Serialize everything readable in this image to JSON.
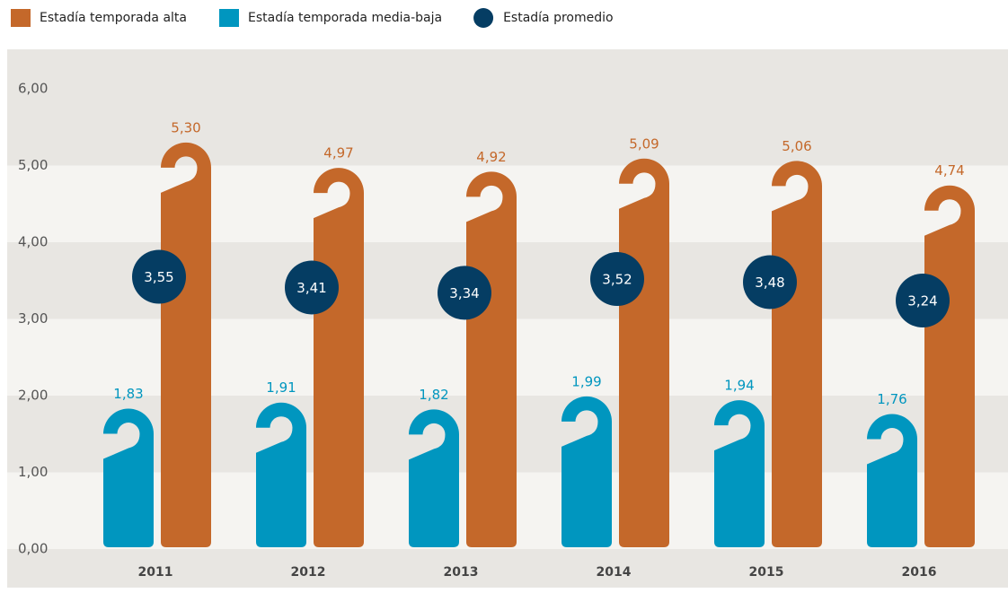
{
  "chart_data": {
    "type": "bar",
    "categories": [
      "2011",
      "2012",
      "2013",
      "2014",
      "2015",
      "2016"
    ],
    "series": [
      {
        "name": "Estadía temporada alta",
        "color": "#c4682a",
        "type": "bar",
        "values": [
          5.3,
          4.97,
          4.92,
          5.09,
          5.06,
          4.74
        ],
        "value_labels": [
          "5,30",
          "4,97",
          "4,92",
          "5,09",
          "5,06",
          "4,74"
        ]
      },
      {
        "name": "Estadía temporada media-baja",
        "color": "#0096bf",
        "type": "bar",
        "values": [
          1.83,
          1.91,
          1.82,
          1.99,
          1.94,
          1.76
        ],
        "value_labels": [
          "1,83",
          "1,91",
          "1,82",
          "1,99",
          "1,94",
          "1,76"
        ]
      },
      {
        "name": "Estadía promedio",
        "color": "#053d63",
        "type": "scatter",
        "values": [
          3.55,
          3.41,
          3.34,
          3.52,
          3.48,
          3.24
        ],
        "value_labels": [
          "3,55",
          "3,41",
          "3,34",
          "3,52",
          "3,48",
          "3,24"
        ]
      }
    ],
    "ylim": [
      0,
      6
    ],
    "yticks": [
      {
        "value": 0,
        "label": "0,00"
      },
      {
        "value": 1,
        "label": "1,00"
      },
      {
        "value": 2,
        "label": "2,00"
      },
      {
        "value": 3,
        "label": "3,00"
      },
      {
        "value": 4,
        "label": "4,00"
      },
      {
        "value": 5,
        "label": "5,00"
      },
      {
        "value": 6,
        "label": "6,00"
      }
    ],
    "legend": "top-left"
  }
}
